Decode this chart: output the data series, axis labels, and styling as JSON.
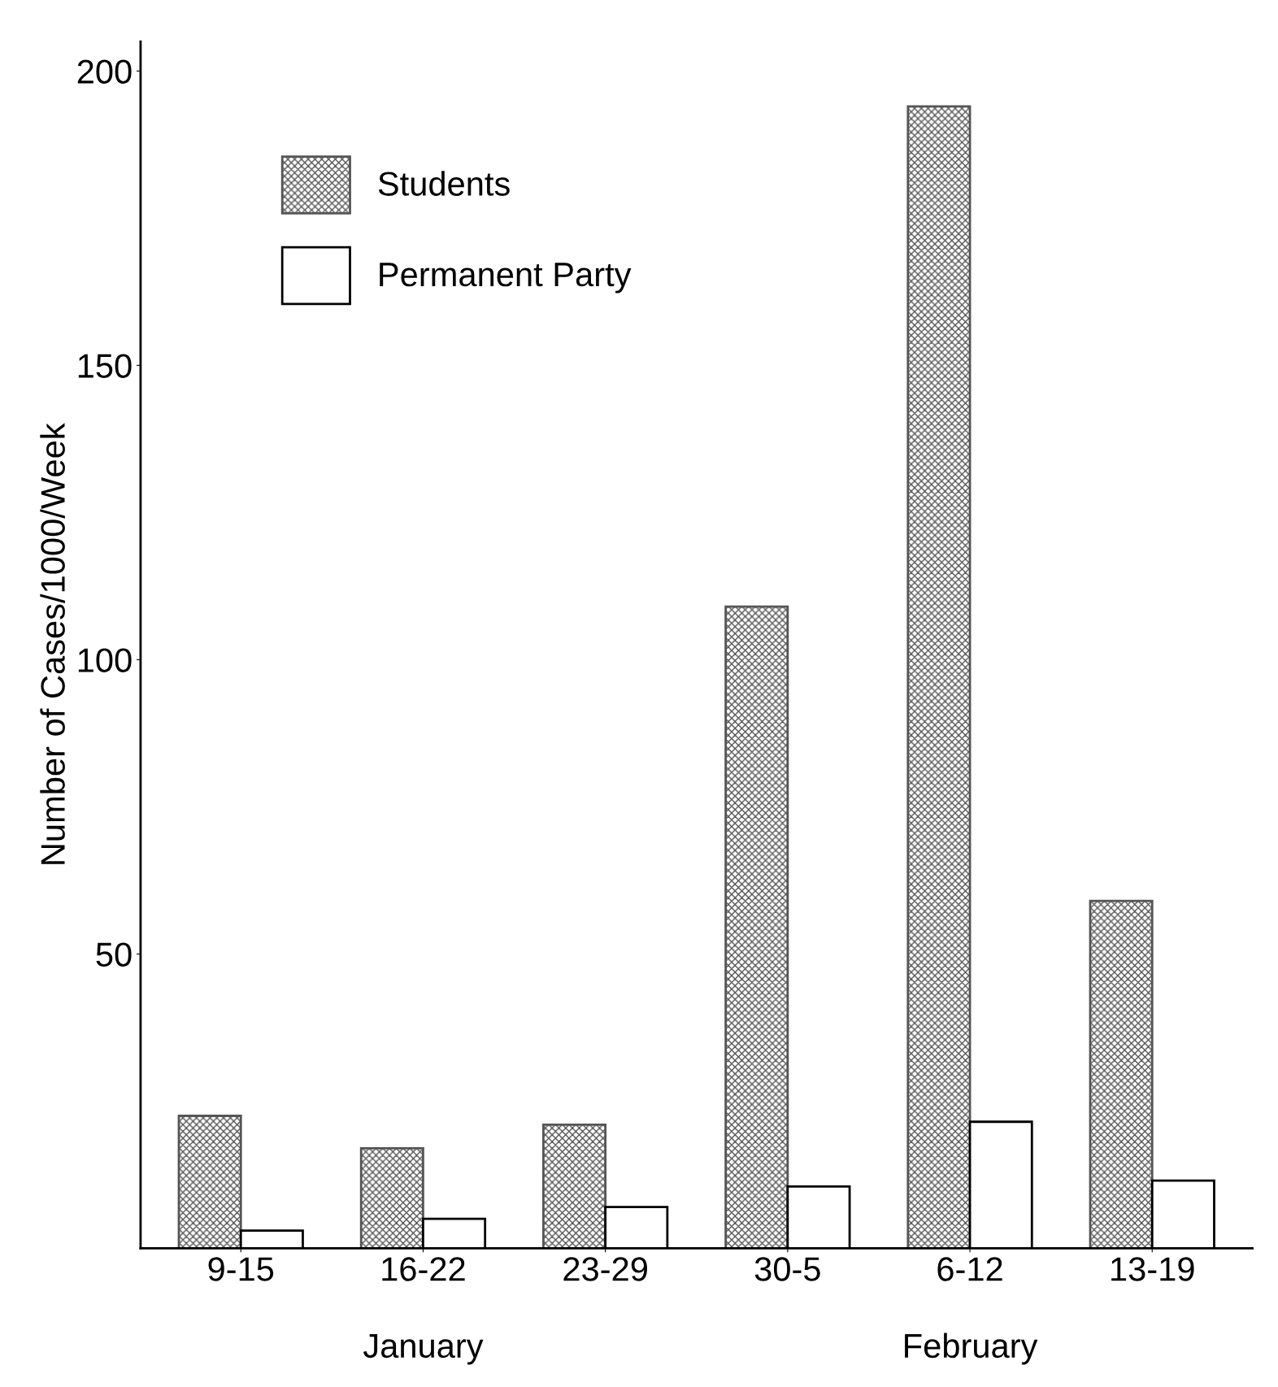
{
  "chart_data": {
    "type": "bar",
    "ylabel": "Number of Cases/1000/Week",
    "categories": [
      "9-15",
      "16-22",
      "23-29",
      "30-5",
      "6-12",
      "13-19"
    ],
    "series": [
      {
        "name": "Students",
        "color": "#555555",
        "values": [
          22.5,
          17,
          21,
          109,
          194,
          59
        ]
      },
      {
        "name": "Permanent Party",
        "color": "#ffffff",
        "values": [
          3,
          5,
          7,
          10.5,
          21.5,
          11.5
        ]
      }
    ],
    "ylim": [
      0,
      205
    ],
    "yticks": [
      50,
      100,
      150,
      200
    ],
    "grid": false,
    "legend": "top left",
    "annotations": [
      "January",
      "February"
    ]
  }
}
